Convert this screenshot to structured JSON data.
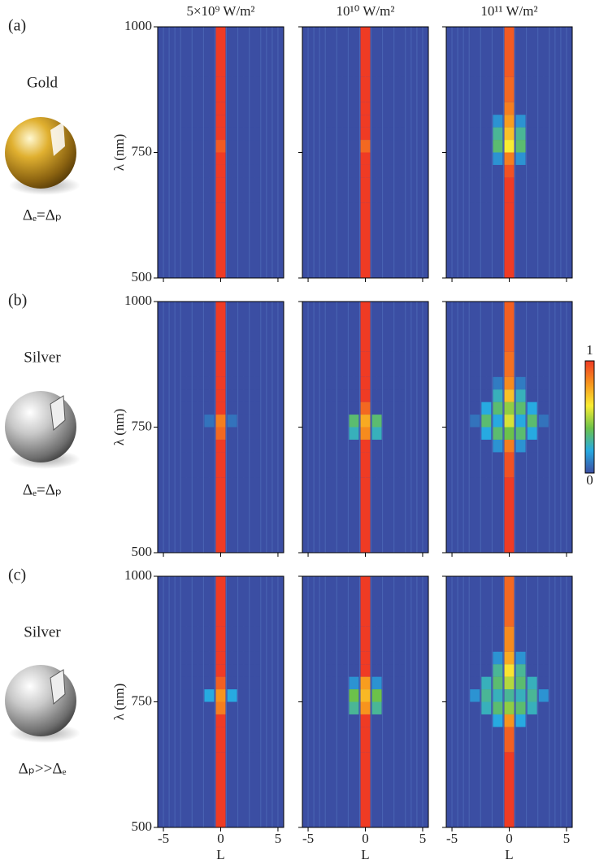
{
  "rows": [
    {
      "label": "(a)",
      "material": "Gold",
      "condition": "Δₑ=Δₚ"
    },
    {
      "label": "(b)",
      "material": "Silver",
      "condition": "Δₑ=Δₚ"
    },
    {
      "label": "(c)",
      "material": "Silver",
      "condition": "Δₚ>>Δₑ"
    }
  ],
  "colorbar": {
    "lim": [
      0,
      1
    ],
    "ticks": [
      0,
      1
    ],
    "colormap": [
      "#3b4ea3",
      "#27aae1",
      "#6cc24a",
      "#f9ed32",
      "#f7941d",
      "#ef3b24"
    ]
  },
  "chart_data": [
    {
      "type": "heatmap",
      "title": "5×10⁹ W/m²",
      "ylabel": "λ (nm)",
      "y_tick_labels": true,
      "x_tick_labels": false,
      "x": [
        -3,
        -2,
        -1,
        0,
        1,
        2,
        3
      ],
      "y_edges": [
        500,
        650,
        700,
        725,
        750,
        775,
        800,
        825,
        850,
        900,
        1000
      ],
      "xlim": [
        -5.5,
        5.5
      ],
      "ylim": [
        500,
        1000
      ],
      "xticks": [
        -5,
        0,
        5
      ],
      "yticks": [
        500,
        750,
        1000
      ],
      "z": [
        [
          0,
          0,
          0,
          1,
          0,
          0,
          0
        ],
        [
          0,
          0,
          0,
          1,
          0,
          0,
          0
        ],
        [
          0,
          0,
          0,
          1,
          0,
          0,
          0
        ],
        [
          0,
          0,
          0,
          1,
          0,
          0,
          0
        ],
        [
          0,
          0,
          0,
          0.93,
          0,
          0,
          0
        ],
        [
          0,
          0,
          0,
          1,
          0,
          0,
          0
        ],
        [
          0,
          0,
          0,
          1,
          0,
          0,
          0
        ],
        [
          0,
          0,
          0,
          1,
          0,
          0,
          0
        ],
        [
          0,
          0,
          0,
          1,
          0,
          0,
          0
        ],
        [
          0,
          0,
          0,
          1,
          0,
          0,
          0
        ]
      ]
    },
    {
      "type": "heatmap",
      "title": "10¹⁰ W/m²",
      "y_tick_labels": false,
      "x_tick_labels": false,
      "x": [
        -3,
        -2,
        -1,
        0,
        1,
        2,
        3
      ],
      "y_edges": [
        500,
        650,
        700,
        725,
        750,
        775,
        800,
        825,
        850,
        900,
        1000
      ],
      "xlim": [
        -5.5,
        5.5
      ],
      "ylim": [
        500,
        1000
      ],
      "xticks": [
        -5,
        0,
        5
      ],
      "yticks": [
        500,
        750,
        1000
      ],
      "z": [
        [
          0,
          0,
          0,
          1,
          0,
          0,
          0
        ],
        [
          0,
          0,
          0,
          1,
          0,
          0,
          0
        ],
        [
          0,
          0,
          0,
          1,
          0,
          0,
          0
        ],
        [
          0,
          0,
          0,
          1,
          0,
          0,
          0
        ],
        [
          0,
          0,
          0,
          0.9,
          0,
          0,
          0
        ],
        [
          0,
          0,
          0,
          1,
          0,
          0,
          0
        ],
        [
          0,
          0,
          0,
          1,
          0,
          0,
          0
        ],
        [
          0,
          0,
          0,
          1,
          0,
          0,
          0
        ],
        [
          0,
          0,
          0,
          1,
          0,
          0,
          0
        ],
        [
          0,
          0,
          0,
          1,
          0,
          0,
          0
        ]
      ]
    },
    {
      "type": "heatmap",
      "title": "10¹¹ W/m²",
      "y_tick_labels": false,
      "x_tick_labels": false,
      "x": [
        -3,
        -2,
        -1,
        0,
        1,
        2,
        3
      ],
      "y_edges": [
        500,
        650,
        700,
        725,
        750,
        775,
        800,
        825,
        850,
        900,
        1000
      ],
      "xlim": [
        -5.5,
        5.5
      ],
      "ylim": [
        500,
        1000
      ],
      "xticks": [
        -5,
        0,
        5
      ],
      "yticks": [
        500,
        750,
        1000
      ],
      "z": [
        [
          0,
          0,
          0,
          1,
          0,
          0,
          0
        ],
        [
          0,
          0,
          0,
          1,
          0,
          0,
          0
        ],
        [
          0,
          0,
          0,
          0.95,
          0,
          0,
          0
        ],
        [
          0,
          0,
          0.15,
          0.85,
          0.15,
          0,
          0
        ],
        [
          0,
          0,
          0.35,
          0.6,
          0.35,
          0,
          0
        ],
        [
          0,
          0,
          0.3,
          0.7,
          0.3,
          0,
          0
        ],
        [
          0,
          0,
          0.15,
          0.78,
          0.15,
          0,
          0
        ],
        [
          0,
          0,
          0,
          0.85,
          0,
          0,
          0
        ],
        [
          0,
          0,
          0,
          0.9,
          0,
          0,
          0
        ],
        [
          0,
          0,
          0,
          0.93,
          0,
          0,
          0
        ]
      ]
    },
    {
      "type": "heatmap",
      "ylabel": "λ (nm)",
      "y_tick_labels": true,
      "x_tick_labels": false,
      "x": [
        -3,
        -2,
        -1,
        0,
        1,
        2,
        3
      ],
      "y_edges": [
        500,
        650,
        700,
        725,
        750,
        775,
        800,
        825,
        850,
        900,
        1000
      ],
      "xlim": [
        -5.5,
        5.5
      ],
      "ylim": [
        500,
        1000
      ],
      "xticks": [
        -5,
        0,
        5
      ],
      "yticks": [
        500,
        750,
        1000
      ],
      "z": [
        [
          0,
          0,
          0,
          1,
          0,
          0,
          0
        ],
        [
          0,
          0,
          0,
          1,
          0,
          0,
          0
        ],
        [
          0,
          0,
          0,
          1,
          0,
          0,
          0
        ],
        [
          0,
          0,
          0,
          0.9,
          0,
          0,
          0
        ],
        [
          0,
          0,
          0.08,
          0.85,
          0.08,
          0,
          0
        ],
        [
          0,
          0,
          0,
          1,
          0,
          0,
          0
        ],
        [
          0,
          0,
          0,
          1,
          0,
          0,
          0
        ],
        [
          0,
          0,
          0,
          1,
          0,
          0,
          0
        ],
        [
          0,
          0,
          0,
          1,
          0,
          0,
          0
        ],
        [
          0,
          0,
          0,
          1,
          0,
          0,
          0
        ]
      ]
    },
    {
      "type": "heatmap",
      "y_tick_labels": false,
      "x_tick_labels": false,
      "x": [
        -3,
        -2,
        -1,
        0,
        1,
        2,
        3
      ],
      "y_edges": [
        500,
        650,
        700,
        725,
        750,
        775,
        800,
        825,
        850,
        900,
        1000
      ],
      "xlim": [
        -5.5,
        5.5
      ],
      "ylim": [
        500,
        1000
      ],
      "xticks": [
        -5,
        0,
        5
      ],
      "yticks": [
        500,
        750,
        1000
      ],
      "z": [
        [
          0,
          0,
          0,
          1,
          0,
          0,
          0
        ],
        [
          0,
          0,
          0,
          1,
          0,
          0,
          0
        ],
        [
          0,
          0,
          0,
          1,
          0,
          0,
          0
        ],
        [
          0,
          0,
          0.25,
          0.82,
          0.25,
          0,
          0
        ],
        [
          0,
          0,
          0.35,
          0.75,
          0.35,
          0,
          0
        ],
        [
          0,
          0,
          0,
          0.9,
          0,
          0,
          0
        ],
        [
          0,
          0,
          0,
          1,
          0,
          0,
          0
        ],
        [
          0,
          0,
          0,
          1,
          0,
          0,
          0
        ],
        [
          0,
          0,
          0,
          1,
          0,
          0,
          0
        ],
        [
          0,
          0,
          0,
          1,
          0,
          0,
          0
        ]
      ]
    },
    {
      "type": "heatmap",
      "y_tick_labels": false,
      "x_tick_labels": false,
      "x": [
        -3,
        -2,
        -1,
        0,
        1,
        2,
        3
      ],
      "y_edges": [
        500,
        650,
        700,
        725,
        750,
        775,
        800,
        825,
        850,
        900,
        1000
      ],
      "xlim": [
        -5.5,
        5.5
      ],
      "ylim": [
        500,
        1000
      ],
      "xticks": [
        -5,
        0,
        5
      ],
      "yticks": [
        500,
        750,
        1000
      ],
      "z": [
        [
          0,
          0,
          0,
          1,
          0,
          0,
          0
        ],
        [
          0,
          0,
          0,
          0.95,
          0,
          0,
          0
        ],
        [
          0,
          0,
          0.15,
          0.85,
          0.15,
          0,
          0
        ],
        [
          0,
          0.2,
          0.35,
          0.4,
          0.35,
          0.2,
          0
        ],
        [
          0.08,
          0.35,
          0.2,
          0.55,
          0.2,
          0.35,
          0.08
        ],
        [
          0,
          0.2,
          0.35,
          0.45,
          0.35,
          0.2,
          0
        ],
        [
          0,
          0,
          0.25,
          0.7,
          0.25,
          0,
          0
        ],
        [
          0,
          0,
          0.1,
          0.82,
          0.1,
          0,
          0
        ],
        [
          0,
          0,
          0,
          0.88,
          0,
          0,
          0
        ],
        [
          0,
          0,
          0,
          0.92,
          0,
          0,
          0
        ]
      ]
    },
    {
      "type": "heatmap",
      "ylabel": "λ (nm)",
      "xlabel": "L",
      "y_tick_labels": true,
      "x_tick_labels": true,
      "x": [
        -3,
        -2,
        -1,
        0,
        1,
        2,
        3
      ],
      "y_edges": [
        500,
        650,
        700,
        725,
        750,
        775,
        800,
        825,
        850,
        900,
        1000
      ],
      "xlim": [
        -5.5,
        5.5
      ],
      "ylim": [
        500,
        1000
      ],
      "xticks": [
        -5,
        0,
        5
      ],
      "yticks": [
        500,
        750,
        1000
      ],
      "z": [
        [
          0,
          0,
          0,
          1,
          0,
          0,
          0
        ],
        [
          0,
          0,
          0,
          1,
          0,
          0,
          0
        ],
        [
          0,
          0,
          0,
          1,
          0,
          0,
          0
        ],
        [
          0,
          0,
          0,
          0.85,
          0,
          0,
          0
        ],
        [
          0,
          0,
          0.2,
          0.8,
          0.2,
          0,
          0
        ],
        [
          0,
          0,
          0,
          0.92,
          0,
          0,
          0
        ],
        [
          0,
          0,
          0,
          1,
          0,
          0,
          0
        ],
        [
          0,
          0,
          0,
          1,
          0,
          0,
          0
        ],
        [
          0,
          0,
          0,
          1,
          0,
          0,
          0
        ],
        [
          0,
          0,
          0,
          1,
          0,
          0,
          0
        ]
      ]
    },
    {
      "type": "heatmap",
      "xlabel": "L",
      "y_tick_labels": false,
      "x_tick_labels": true,
      "x": [
        -3,
        -2,
        -1,
        0,
        1,
        2,
        3
      ],
      "y_edges": [
        500,
        650,
        700,
        725,
        750,
        775,
        800,
        825,
        850,
        900,
        1000
      ],
      "xlim": [
        -5.5,
        5.5
      ],
      "ylim": [
        500,
        1000
      ],
      "xticks": [
        -5,
        0,
        5
      ],
      "yticks": [
        500,
        750,
        1000
      ],
      "z": [
        [
          0,
          0,
          0,
          1,
          0,
          0,
          0
        ],
        [
          0,
          0,
          0,
          1,
          0,
          0,
          0
        ],
        [
          0,
          0,
          0,
          1,
          0,
          0,
          0
        ],
        [
          0,
          0,
          0.3,
          0.8,
          0.3,
          0,
          0
        ],
        [
          0,
          0,
          0.4,
          0.72,
          0.4,
          0,
          0
        ],
        [
          0,
          0,
          0.15,
          0.78,
          0.15,
          0,
          0
        ],
        [
          0,
          0,
          0,
          1,
          0,
          0,
          0
        ],
        [
          0,
          0,
          0,
          1,
          0,
          0,
          0
        ],
        [
          0,
          0,
          0,
          1,
          0,
          0,
          0
        ],
        [
          0,
          0,
          0,
          1,
          0,
          0,
          0
        ]
      ]
    },
    {
      "type": "heatmap",
      "xlabel": "L",
      "y_tick_labels": false,
      "x_tick_labels": true,
      "x": [
        -3,
        -2,
        -1,
        0,
        1,
        2,
        3
      ],
      "y_edges": [
        500,
        650,
        700,
        725,
        750,
        775,
        800,
        825,
        850,
        900,
        1000
      ],
      "xlim": [
        -5.5,
        5.5
      ],
      "ylim": [
        500,
        1000
      ],
      "xticks": [
        -5,
        0,
        5
      ],
      "yticks": [
        500,
        750,
        1000
      ],
      "z": [
        [
          0,
          0,
          0,
          1,
          0,
          0,
          0
        ],
        [
          0,
          0,
          0,
          0.92,
          0,
          0,
          0
        ],
        [
          0,
          0,
          0.2,
          0.8,
          0.2,
          0,
          0
        ],
        [
          0,
          0.25,
          0.35,
          0.45,
          0.35,
          0.25,
          0
        ],
        [
          0.15,
          0.3,
          0.25,
          0.3,
          0.25,
          0.3,
          0.15
        ],
        [
          0,
          0.25,
          0.35,
          0.5,
          0.35,
          0.25,
          0
        ],
        [
          0,
          0,
          0.3,
          0.62,
          0.3,
          0,
          0
        ],
        [
          0,
          0,
          0.15,
          0.75,
          0.15,
          0,
          0
        ],
        [
          0,
          0,
          0,
          0.82,
          0,
          0,
          0
        ],
        [
          0,
          0,
          0,
          0.9,
          0,
          0,
          0
        ]
      ]
    }
  ]
}
